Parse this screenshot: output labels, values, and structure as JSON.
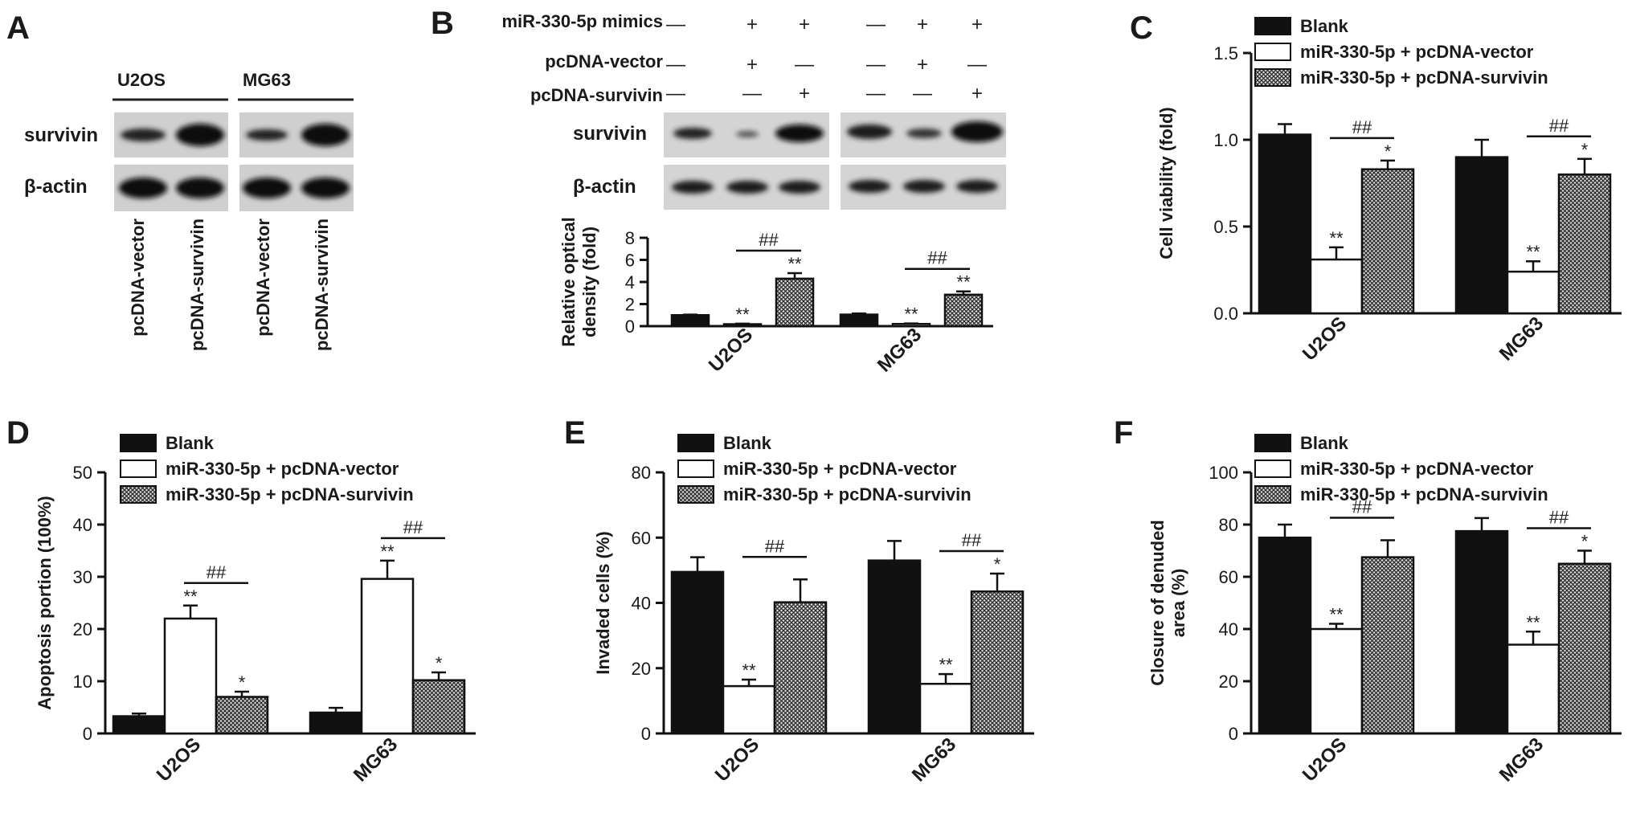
{
  "panels": {
    "A": {
      "label": "A",
      "cell_lines": [
        "U2OS",
        "MG63"
      ],
      "row_labels": [
        "survivin",
        "β-actin"
      ],
      "lane_labels": [
        "pcDNA-vector",
        "pcDNA-survivin",
        "pcDNA-vector",
        "pcDNA-survivin"
      ]
    },
    "B": {
      "label": "B",
      "treatment_rows": [
        {
          "label": "miR-330-5p mimics",
          "signs": [
            "—",
            "+",
            "+",
            "—",
            "+",
            "+"
          ]
        },
        {
          "label": "pcDNA-vector",
          "signs": [
            "—",
            "+",
            "—",
            "—",
            "+",
            "—"
          ]
        },
        {
          "label": "pcDNA-survivin",
          "signs": [
            "—",
            "—",
            "+",
            "—",
            "—",
            "+"
          ]
        }
      ],
      "row_labels": [
        "survivin",
        "β-actin"
      ]
    },
    "C": {
      "label": "C"
    },
    "D": {
      "label": "D"
    },
    "E": {
      "label": "E"
    },
    "F": {
      "label": "F"
    }
  },
  "legend": [
    "Blank",
    "miR-330-5p + pcDNA-vector",
    "miR-330-5p + pcDNA-survivin"
  ],
  "colors": {
    "blank": "#111111",
    "vector": "#ffffff",
    "survivin_fill": "#8a8a8a",
    "axis": "#111111"
  },
  "chart_data": [
    {
      "panel": "B",
      "type": "bar",
      "ylabel": "Relative optical density (fold)",
      "ylabel_lines": [
        "Relative optical",
        "density (fold)"
      ],
      "categories": [
        "U2OS",
        "MG63"
      ],
      "ylim": [
        0,
        8
      ],
      "yticks": [
        "0",
        "2",
        "4",
        "6",
        "8"
      ],
      "ytick_values": [
        0,
        2,
        4,
        6,
        8
      ],
      "series": [
        {
          "values": [
            1.0,
            1.05
          ],
          "errors": [
            0.05,
            0.1
          ]
        },
        {
          "values": [
            0.18,
            0.2
          ],
          "errors": [
            0.05,
            0.05
          ],
          "sig": [
            "**",
            "**"
          ]
        },
        {
          "values": [
            4.3,
            2.85
          ],
          "errors": [
            0.5,
            0.3
          ],
          "sig": [
            "**",
            "**"
          ]
        }
      ],
      "brackets": [
        {
          "category": 0,
          "label": "##"
        },
        {
          "category": 1,
          "label": "##"
        }
      ]
    },
    {
      "panel": "C",
      "type": "bar",
      "ylabel": "Cell viability (fold)",
      "ylabel_lines": [
        "Cell viability (fold)"
      ],
      "categories": [
        "U2OS",
        "MG63"
      ],
      "ylim": [
        0,
        1.5
      ],
      "yticks": [
        "0.0",
        "0.5",
        "1.0",
        "1.5"
      ],
      "ytick_values": [
        0,
        0.5,
        1.0,
        1.5
      ],
      "legend_position": "top-right",
      "series": [
        {
          "name": "Blank",
          "values": [
            1.03,
            0.9
          ],
          "errors": [
            0.06,
            0.1
          ]
        },
        {
          "name": "miR-330-5p + pcDNA-vector",
          "values": [
            0.31,
            0.24
          ],
          "errors": [
            0.07,
            0.06
          ],
          "sig": [
            "**",
            "**"
          ]
        },
        {
          "name": "miR-330-5p + pcDNA-survivin",
          "values": [
            0.83,
            0.8
          ],
          "errors": [
            0.05,
            0.09
          ],
          "sig": [
            "*",
            "*"
          ]
        }
      ],
      "brackets": [
        {
          "category": 0,
          "label": "##"
        },
        {
          "category": 1,
          "label": "##"
        }
      ]
    },
    {
      "panel": "D",
      "type": "bar",
      "ylabel": "Apoptosis portion (100%)",
      "ylabel_lines": [
        "Apoptosis portion (100%)"
      ],
      "categories": [
        "U2OS",
        "MG63"
      ],
      "ylim": [
        0,
        50
      ],
      "yticks": [
        "0",
        "10",
        "20",
        "30",
        "40",
        "50"
      ],
      "ytick_values": [
        0,
        10,
        20,
        30,
        40,
        50
      ],
      "legend_position": "top-right",
      "series": [
        {
          "name": "Blank",
          "values": [
            3.3,
            4.0
          ],
          "errors": [
            0.5,
            0.9
          ]
        },
        {
          "name": "miR-330-5p + pcDNA-vector",
          "values": [
            22,
            29.6
          ],
          "errors": [
            2.5,
            3.5
          ],
          "sig": [
            "**",
            "**"
          ]
        },
        {
          "name": "miR-330-5p + pcDNA-survivin",
          "values": [
            7.0,
            10.2
          ],
          "errors": [
            1.0,
            1.5
          ],
          "sig": [
            "*",
            "*"
          ]
        }
      ],
      "brackets": [
        {
          "category": 0,
          "label": "##"
        },
        {
          "category": 1,
          "label": "##"
        }
      ]
    },
    {
      "panel": "E",
      "type": "bar",
      "ylabel": "Invaded cells (%)",
      "ylabel_lines": [
        "Invaded cells (%)"
      ],
      "categories": [
        "U2OS",
        "MG63"
      ],
      "ylim": [
        0,
        80
      ],
      "yticks": [
        "0",
        "20",
        "40",
        "60",
        "80"
      ],
      "ytick_values": [
        0,
        20,
        40,
        60,
        80
      ],
      "legend_position": "top-right",
      "series": [
        {
          "name": "Blank",
          "values": [
            49.5,
            53
          ],
          "errors": [
            4.5,
            6
          ]
        },
        {
          "name": "miR-330-5p + pcDNA-vector",
          "values": [
            14.5,
            15.2
          ],
          "errors": [
            2,
            3
          ],
          "sig": [
            "**",
            "**"
          ]
        },
        {
          "name": "miR-330-5p + pcDNA-survivin",
          "values": [
            40.2,
            43.5
          ],
          "errors": [
            7,
            5.5
          ],
          "sig": [
            "",
            "*"
          ]
        }
      ],
      "brackets": [
        {
          "category": 0,
          "label": "##"
        },
        {
          "category": 1,
          "label": "##"
        }
      ]
    },
    {
      "panel": "F",
      "type": "bar",
      "ylabel": "Closure of denuded area (%)",
      "ylabel_lines": [
        "Closure of denuded",
        "area (%)"
      ],
      "categories": [
        "U2OS",
        "MG63"
      ],
      "ylim": [
        0,
        100
      ],
      "yticks": [
        "0",
        "20",
        "40",
        "60",
        "80",
        "100"
      ],
      "ytick_values": [
        0,
        20,
        40,
        60,
        80,
        100
      ],
      "legend_position": "top-right",
      "series": [
        {
          "name": "Blank",
          "values": [
            75,
            77.5
          ],
          "errors": [
            5,
            5
          ]
        },
        {
          "name": "miR-330-5p + pcDNA-vector",
          "values": [
            40,
            34
          ],
          "errors": [
            2,
            5
          ],
          "sig": [
            "**",
            "**"
          ]
        },
        {
          "name": "miR-330-5p + pcDNA-survivin",
          "values": [
            67.5,
            65
          ],
          "errors": [
            6.5,
            5
          ],
          "sig": [
            "",
            "*"
          ]
        }
      ],
      "brackets": [
        {
          "category": 0,
          "label": "##"
        },
        {
          "category": 1,
          "label": "##"
        }
      ]
    }
  ]
}
